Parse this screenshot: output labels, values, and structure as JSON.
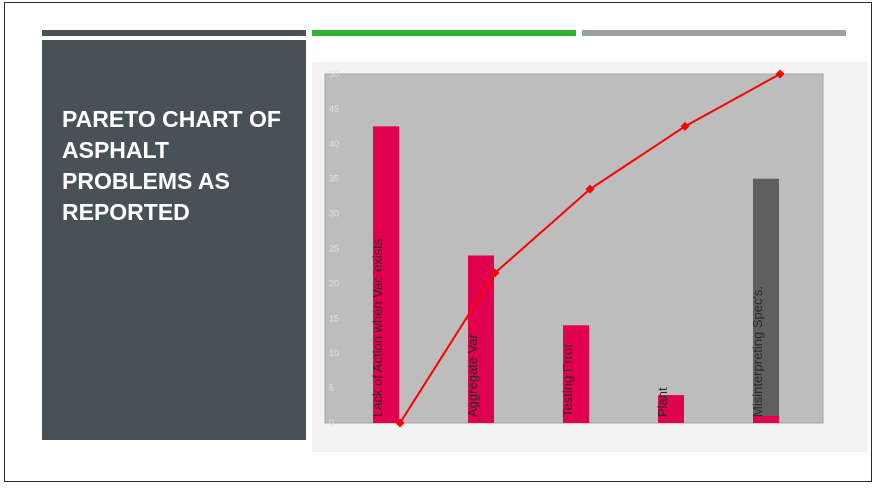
{
  "slide": {
    "title": "Pareto Chart of Asphalt Problems as Reported"
  },
  "accent_bars": [
    {
      "name": "dark",
      "color": "#485156"
    },
    {
      "name": "green",
      "color": "#2fb52f"
    },
    {
      "name": "gray",
      "color": "#9aa0a5"
    }
  ],
  "chart_data": {
    "type": "bar",
    "title": "",
    "xlabel": "",
    "ylabel": "",
    "ylim": [
      0,
      50
    ],
    "yticks": [
      0,
      5,
      10,
      15,
      20,
      25,
      30,
      35,
      40,
      45,
      50
    ],
    "grid": false,
    "categories": [
      "Lack of Action when Var. exists",
      "Aggregate Var",
      "Testing Error",
      "Plant",
      "Misinterpreting Spec's."
    ],
    "series": [
      {
        "type": "bar",
        "values": [
          42.5,
          24,
          14,
          4,
          35
        ],
        "colors": [
          "#e0004d",
          "#e0004d",
          "#e0004d",
          "#e0004d",
          "#5f5f5f"
        ]
      },
      {
        "type": "line",
        "values": [
          0,
          21.5,
          33.5,
          42.5,
          50
        ],
        "color": "#ff0000"
      }
    ],
    "last_bar_base_value": 1,
    "last_bar_base_color": "#e0004d",
    "plot_background": "#bdbdbd"
  }
}
